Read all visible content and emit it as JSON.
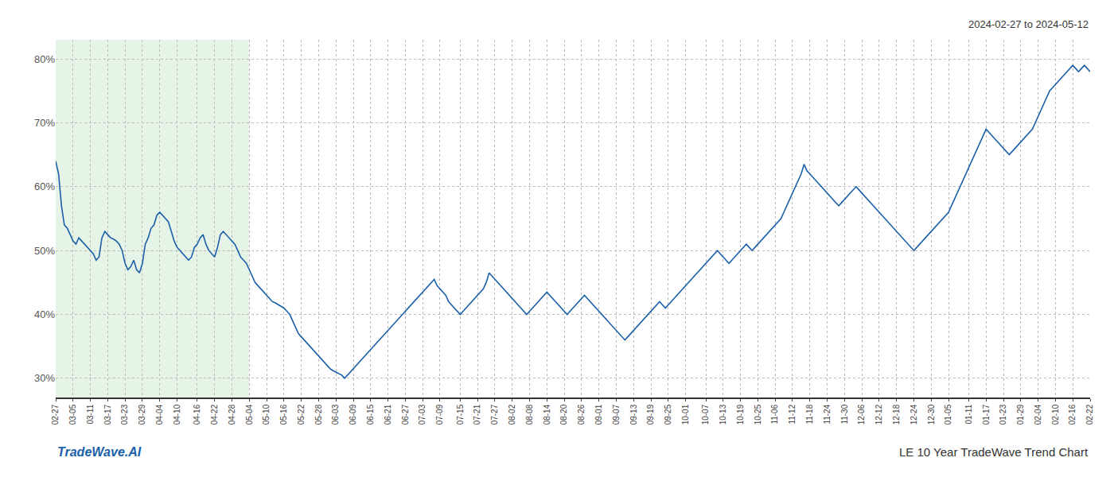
{
  "chart_data": {
    "type": "line",
    "title": "LE 10 Year TradeWave Trend Chart",
    "subtitle": "2024-02-27 to 2024-05-12",
    "annotations": [
      "TradeWave.AI"
    ],
    "color": "#1a5fa8",
    "grid": true,
    "ylim": [
      27,
      83
    ],
    "yticks": [
      {
        "value": 30,
        "label": "30%"
      },
      {
        "value": 40,
        "label": "40%"
      },
      {
        "value": 50,
        "label": "50%"
      },
      {
        "value": 60,
        "label": "60%"
      },
      {
        "value": 70,
        "label": "70%"
      },
      {
        "value": 80,
        "label": "80%"
      }
    ],
    "shade": {
      "from": "02-27",
      "to": "05-04",
      "color": "#c8e6c9"
    },
    "categories": [
      "02-27",
      null,
      null,
      null,
      null,
      null,
      "03-05",
      null,
      null,
      null,
      null,
      null,
      "03-11",
      null,
      null,
      null,
      null,
      null,
      "03-17",
      null,
      null,
      null,
      null,
      null,
      "03-23",
      null,
      null,
      null,
      null,
      null,
      "03-29",
      null,
      null,
      null,
      null,
      null,
      "04-04",
      null,
      null,
      null,
      null,
      null,
      "04-10",
      null,
      null,
      null,
      null,
      null,
      null,
      "04-16",
      null,
      null,
      null,
      null,
      null,
      "04-22",
      null,
      null,
      null,
      null,
      null,
      "04-28",
      null,
      null,
      null,
      null,
      null,
      "05-04",
      null,
      null,
      null,
      null,
      null,
      "05-10",
      null,
      null,
      null,
      null,
      null,
      "05-16",
      null,
      null,
      null,
      null,
      null,
      "05-22",
      null,
      null,
      null,
      null,
      null,
      "05-28",
      null,
      null,
      null,
      null,
      null,
      "06-03",
      null,
      null,
      null,
      null,
      null,
      "06-09",
      null,
      null,
      null,
      null,
      null,
      "06-15",
      null,
      null,
      null,
      null,
      null,
      "06-21",
      null,
      null,
      null,
      null,
      null,
      "06-27",
      null,
      null,
      null,
      null,
      null,
      "07-03",
      null,
      null,
      null,
      null,
      null,
      "07-09",
      null,
      null,
      null,
      null,
      null,
      null,
      "07-15",
      null,
      null,
      null,
      null,
      null,
      "07-21",
      null,
      null,
      null,
      null,
      null,
      "07-27",
      null,
      null,
      null,
      null,
      null,
      "08-02",
      null,
      null,
      null,
      null,
      null,
      "08-08",
      null,
      null,
      null,
      null,
      null,
      "08-14",
      null,
      null,
      null,
      null,
      null,
      "08-20",
      null,
      null,
      null,
      null,
      null,
      "08-26",
      null,
      null,
      null,
      null,
      null,
      "09-01",
      null,
      null,
      null,
      null,
      null,
      "09-07",
      null,
      null,
      null,
      null,
      null,
      "09-13",
      null,
      null,
      null,
      null,
      null,
      "09-19",
      null,
      null,
      null,
      null,
      null,
      "09-25",
      null,
      null,
      null,
      null,
      null,
      "10-01",
      null,
      null,
      null,
      null,
      null,
      null,
      "10-07",
      null,
      null,
      null,
      null,
      null,
      "10-13",
      null,
      null,
      null,
      null,
      null,
      "10-19",
      null,
      null,
      null,
      null,
      null,
      "10-25",
      null,
      null,
      null,
      null,
      null,
      "11-06",
      null,
      null,
      null,
      null,
      null,
      "11-12",
      null,
      null,
      null,
      null,
      null,
      "11-18",
      null,
      null,
      null,
      null,
      null,
      "11-24",
      null,
      null,
      null,
      null,
      null,
      "11-30",
      null,
      null,
      null,
      null,
      null,
      "12-06",
      null,
      null,
      null,
      null,
      null,
      "12-12",
      null,
      null,
      null,
      null,
      null,
      "12-18",
      null,
      null,
      null,
      null,
      null,
      "12-24",
      null,
      null,
      null,
      null,
      null,
      "12-30",
      null,
      null,
      null,
      null,
      null,
      "01-05",
      null,
      null,
      null,
      null,
      null,
      null,
      "01-11",
      null,
      null,
      null,
      null,
      null,
      "01-17",
      null,
      null,
      null,
      null,
      null,
      "01-23",
      null,
      null,
      null,
      null,
      null,
      "01-29",
      null,
      null,
      null,
      null,
      null,
      "02-04",
      null,
      null,
      null,
      null,
      null,
      "02-10",
      null,
      null,
      null,
      null,
      null,
      "02-16",
      null,
      null,
      null,
      null,
      null,
      "02-22"
    ],
    "values": [
      64.0,
      62.0,
      57.0,
      54.0,
      53.5,
      52.5,
      51.5,
      51.0,
      52.0,
      51.5,
      51.0,
      50.5,
      50.0,
      49.5,
      48.5,
      49.0,
      52.0,
      53.0,
      52.5,
      52.0,
      51.8,
      51.5,
      51.0,
      50.0,
      48.0,
      47.0,
      47.5,
      48.5,
      47.0,
      46.5,
      48.0,
      51.0,
      52.0,
      53.5,
      54.0,
      55.5,
      56.0,
      55.5,
      55.0,
      54.5,
      53.0,
      51.5,
      50.5,
      50.0,
      49.5,
      49.0,
      48.5,
      49.0,
      50.5,
      51.0,
      52.0,
      52.5,
      51.0,
      50.0,
      49.5,
      49.0,
      50.5,
      52.5,
      53.0,
      52.5,
      52.0,
      51.5,
      51.0,
      50.0,
      49.0,
      48.5,
      48.0,
      47.0,
      46.0,
      45.0,
      44.5,
      44.0,
      43.5,
      43.0,
      42.5,
      42.0,
      41.8,
      41.5,
      41.2,
      41.0,
      40.5,
      40.0,
      39.0,
      38.0,
      37.0,
      36.5,
      36.0,
      35.5,
      35.0,
      34.5,
      34.0,
      33.5,
      33.0,
      32.5,
      32.0,
      31.5,
      31.2,
      31.0,
      30.8,
      30.5,
      30.0,
      30.5,
      31.0,
      31.5,
      32.0,
      32.5,
      33.0,
      33.5,
      34.0,
      34.5,
      35.0,
      35.5,
      36.0,
      36.5,
      37.0,
      37.5,
      38.0,
      38.5,
      39.0,
      39.5,
      40.0,
      40.5,
      41.0,
      41.5,
      42.0,
      42.5,
      43.0,
      43.5,
      44.0,
      44.5,
      45.0,
      45.5,
      44.5,
      44.0,
      43.5,
      43.0,
      42.0,
      41.5,
      41.0,
      40.5,
      40.0,
      40.5,
      41.0,
      41.5,
      42.0,
      42.5,
      43.0,
      43.5,
      44.0,
      45.0,
      46.5,
      46.0,
      45.5,
      45.0,
      44.5,
      44.0,
      43.5,
      43.0,
      42.5,
      42.0,
      41.5,
      41.0,
      40.5,
      40.0,
      40.5,
      41.0,
      41.5,
      42.0,
      42.5,
      43.0,
      43.5,
      43.0,
      42.5,
      42.0,
      41.5,
      41.0,
      40.5,
      40.0,
      40.5,
      41.0,
      41.5,
      42.0,
      42.5,
      43.0,
      42.5,
      42.0,
      41.5,
      41.0,
      40.5,
      40.0,
      39.5,
      39.0,
      38.5,
      38.0,
      37.5,
      37.0,
      36.5,
      36.0,
      36.5,
      37.0,
      37.5,
      38.0,
      38.5,
      39.0,
      39.5,
      40.0,
      40.5,
      41.0,
      41.5,
      42.0,
      41.5,
      41.0,
      41.5,
      42.0,
      42.5,
      43.0,
      43.5,
      44.0,
      44.5,
      45.0,
      45.5,
      46.0,
      46.5,
      47.0,
      47.5,
      48.0,
      48.5,
      49.0,
      49.5,
      50.0,
      49.5,
      49.0,
      48.5,
      48.0,
      48.5,
      49.0,
      49.5,
      50.0,
      50.5,
      51.0,
      50.5,
      50.0,
      50.5,
      51.0,
      51.5,
      52.0,
      52.5,
      53.0,
      53.5,
      54.0,
      54.5,
      55.0,
      56.0,
      57.0,
      58.0,
      59.0,
      60.0,
      61.0,
      62.0,
      63.5,
      62.5,
      62.0,
      61.5,
      61.0,
      60.5,
      60.0,
      59.5,
      59.0,
      58.5,
      58.0,
      57.5,
      57.0,
      57.5,
      58.0,
      58.5,
      59.0,
      59.5,
      60.0,
      59.5,
      59.0,
      58.5,
      58.0,
      57.5,
      57.0,
      56.5,
      56.0,
      55.5,
      55.0,
      54.5,
      54.0,
      53.5,
      53.0,
      52.5,
      52.0,
      51.5,
      51.0,
      50.5,
      50.0,
      50.5,
      51.0,
      51.5,
      52.0,
      52.5,
      53.0,
      53.5,
      54.0,
      54.5,
      55.0,
      55.5,
      56.0,
      57.0,
      58.0,
      59.0,
      60.0,
      61.0,
      62.0,
      63.0,
      64.0,
      65.0,
      66.0,
      67.0,
      68.0,
      69.0,
      68.5,
      68.0,
      67.5,
      67.0,
      66.5,
      66.0,
      65.5,
      65.0,
      65.5,
      66.0,
      66.5,
      67.0,
      67.5,
      68.0,
      68.5,
      69.0,
      70.0,
      71.0,
      72.0,
      73.0,
      74.0,
      75.0,
      75.5,
      76.0,
      76.5,
      77.0,
      77.5,
      78.0,
      78.5,
      79.0,
      78.5,
      78.0,
      78.5,
      79.0,
      78.5,
      78.0
    ]
  }
}
